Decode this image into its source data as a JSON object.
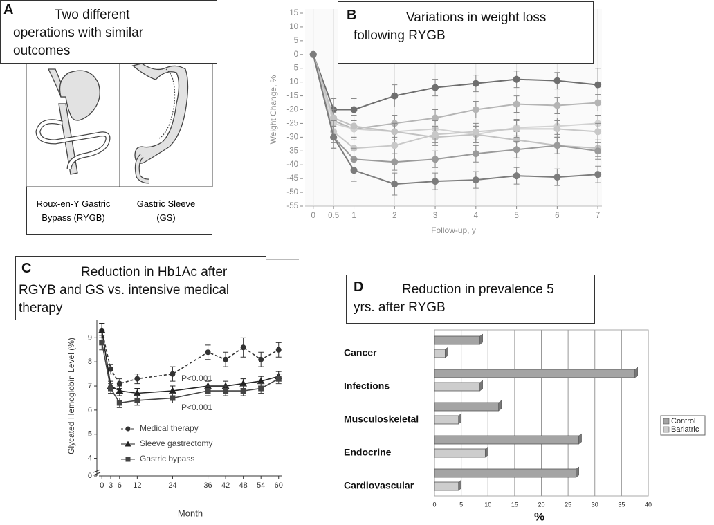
{
  "panel_a": {
    "label": "A",
    "title": "Two different operations with similar outcomes",
    "procedures": [
      "Roux-en-Y Gastric Bypass (RYGB)",
      "Gastric Sleeve (GS)"
    ]
  },
  "chart_data": [
    {
      "type": "line",
      "label": "B",
      "title": "Variations in weight loss following RYGB",
      "x_label": "Follow-up, y",
      "y_label": "Weight Change, %",
      "x": [
        0,
        0.5,
        1,
        2,
        3,
        4,
        5,
        6,
        7
      ],
      "xlim": [
        -0.2,
        7.1
      ],
      "ylim": [
        -55,
        15
      ],
      "xticks": [
        0,
        0.5,
        1,
        2,
        3,
        4,
        5,
        6,
        7
      ],
      "yticks": [
        -55,
        -50,
        -45,
        -40,
        -35,
        -30,
        -25,
        -20,
        -15,
        -10,
        -5,
        0,
        5,
        10,
        15
      ],
      "grid": "x",
      "series": [
        {
          "color": "#6e6e6e",
          "values": [
            0,
            -20,
            -20,
            -15,
            -12,
            -10.5,
            -9,
            -9.5,
            -11
          ],
          "errors": [
            0,
            4,
            4,
            4,
            3,
            3,
            3,
            3,
            6
          ]
        },
        {
          "color": "#b4b4b4",
          "values": [
            0,
            -24,
            -27,
            -25,
            -23,
            -20,
            -18,
            -18.5,
            -17.5
          ],
          "errors": [
            0,
            4,
            4,
            3,
            3,
            3,
            3,
            3,
            3
          ]
        },
        {
          "color": "#d2d2d2",
          "values": [
            0,
            -25,
            -27,
            -28,
            -27,
            -29,
            -26.5,
            -26,
            -25
          ],
          "errors": [
            0,
            4,
            4,
            3,
            3,
            3,
            3,
            3,
            3
          ]
        },
        {
          "color": "#c2c2c2",
          "values": [
            0,
            -23,
            -26,
            -28,
            -30,
            -29,
            -31,
            -33,
            -34
          ],
          "errors": [
            0,
            4,
            4,
            3,
            3,
            3,
            3,
            3,
            3
          ]
        },
        {
          "color": "#c8c8c8",
          "values": [
            0,
            -28,
            -34,
            -33,
            -29,
            -28,
            -27,
            -27,
            -28
          ],
          "errors": [
            0,
            4,
            4,
            3,
            3,
            3,
            3,
            3,
            3
          ]
        },
        {
          "color": "#9a9a9a",
          "values": [
            0,
            -30,
            -38,
            -39,
            -38,
            -36,
            -34.5,
            -33,
            -35
          ],
          "errors": [
            0,
            4,
            4,
            3,
            3,
            3,
            3,
            3,
            3
          ]
        },
        {
          "color": "#7c7c7c",
          "values": [
            0,
            -30,
            -42,
            -47,
            -46,
            -45.5,
            -44,
            -44.5,
            -43.5
          ],
          "errors": [
            0,
            4,
            4,
            4,
            3,
            3,
            3,
            3,
            3
          ]
        }
      ]
    },
    {
      "type": "line",
      "label": "C",
      "title": "Reduction in Hb1Ac after RGYB and GS vs. intensive medical therapy",
      "x_label": "Month",
      "y_label": "Glycated Hemoglobin Level (%)",
      "x": [
        0,
        3,
        6,
        12,
        24,
        36,
        42,
        48,
        54,
        60
      ],
      "xlim": [
        -1,
        61
      ],
      "ylim": [
        3.5,
        9.9
      ],
      "xticks": [
        0,
        3,
        6,
        12,
        24,
        36,
        42,
        48,
        54,
        60
      ],
      "yticks": [
        0,
        4,
        5,
        6,
        7,
        8,
        9
      ],
      "axis_break": true,
      "legend": "lower-left",
      "annotations": [
        "P<0.001",
        "P<0.001"
      ],
      "series": [
        {
          "name": "Medical therapy",
          "color": "#333333",
          "marker": "circle",
          "dash": true,
          "values": [
            9.3,
            7.7,
            7.1,
            7.3,
            7.5,
            8.4,
            8.1,
            8.6,
            8.1,
            8.5
          ],
          "errors": [
            0.3,
            0.2,
            0.2,
            0.2,
            0.3,
            0.3,
            0.3,
            0.4,
            0.3,
            0.3
          ]
        },
        {
          "name": "Sleeve gastrectomy",
          "color": "#222222",
          "marker": "triangle",
          "dash": false,
          "values": [
            9.3,
            7.0,
            6.8,
            6.7,
            6.8,
            7.0,
            7.0,
            7.1,
            7.2,
            7.4
          ],
          "errors": [
            0.3,
            0.2,
            0.2,
            0.2,
            0.2,
            0.2,
            0.2,
            0.2,
            0.2,
            0.2
          ]
        },
        {
          "name": "Gastric bypass",
          "color": "#444444",
          "marker": "square",
          "dash": false,
          "values": [
            8.8,
            6.9,
            6.3,
            6.4,
            6.5,
            6.8,
            6.8,
            6.8,
            6.9,
            7.3
          ],
          "errors": [
            0.3,
            0.2,
            0.2,
            0.2,
            0.2,
            0.2,
            0.2,
            0.2,
            0.2,
            0.2
          ]
        }
      ]
    },
    {
      "type": "bar",
      "orientation": "horizontal",
      "label": "D",
      "title": "Reduction in prevalence 5 yrs. after RYGB",
      "x_label": "%",
      "categories": [
        "Cancer",
        "Infections",
        "Musculoskeletal",
        "Endocrine",
        "Cardiovascular"
      ],
      "xlim": [
        0,
        40
      ],
      "xticks": [
        0,
        5,
        10,
        15,
        20,
        25,
        30,
        35,
        40
      ],
      "grid": true,
      "legend": "right",
      "series": [
        {
          "name": "Control",
          "color": "#a4a4a4",
          "values": [
            8.5,
            37.5,
            12,
            27,
            26.5
          ]
        },
        {
          "name": "Bariatric",
          "color": "#cdcdcd",
          "values": [
            2,
            8.5,
            4.5,
            9.5,
            4.5
          ]
        }
      ]
    }
  ]
}
